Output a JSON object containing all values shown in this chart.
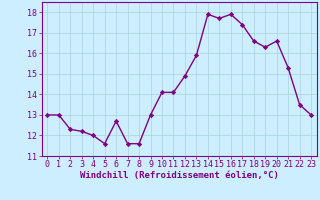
{
  "x": [
    0,
    1,
    2,
    3,
    4,
    5,
    6,
    7,
    8,
    9,
    10,
    11,
    12,
    13,
    14,
    15,
    16,
    17,
    18,
    19,
    20,
    21,
    22,
    23
  ],
  "y": [
    13.0,
    13.0,
    12.3,
    12.2,
    12.0,
    11.6,
    12.7,
    11.6,
    11.6,
    13.0,
    14.1,
    14.1,
    14.9,
    15.9,
    17.9,
    17.7,
    17.9,
    17.4,
    16.6,
    16.3,
    16.6,
    15.3,
    13.5,
    13.0
  ],
  "line_color": "#800080",
  "marker": "D",
  "markersize": 2.2,
  "linewidth": 1.0,
  "bg_color": "#cceeff",
  "grid_color": "#aad4d4",
  "xlabel": "Windchill (Refroidissement éolien,°C)",
  "xlabel_fontsize": 6.5,
  "tick_fontsize": 6.0,
  "ylim": [
    11,
    18.5
  ],
  "xlim": [
    -0.5,
    23.5
  ],
  "yticks": [
    11,
    12,
    13,
    14,
    15,
    16,
    17,
    18
  ],
  "xticks": [
    0,
    1,
    2,
    3,
    4,
    5,
    6,
    7,
    8,
    9,
    10,
    11,
    12,
    13,
    14,
    15,
    16,
    17,
    18,
    19,
    20,
    21,
    22,
    23
  ]
}
